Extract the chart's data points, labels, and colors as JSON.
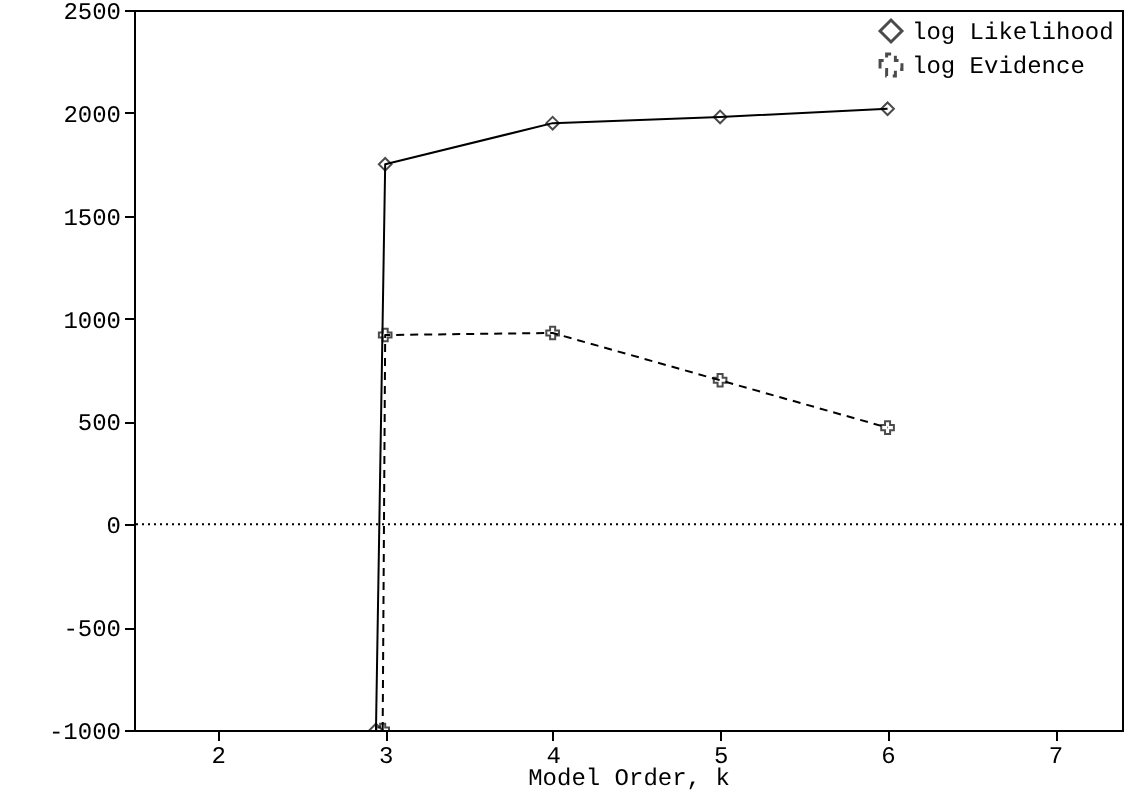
{
  "chart_data": {
    "type": "line",
    "xlabel": "Model Order, k",
    "xlim": [
      1.5,
      7.4
    ],
    "xticks": [
      2,
      3,
      4,
      5,
      6,
      7
    ],
    "ylim": [
      -1000,
      2500
    ],
    "yticks": [
      -1000,
      -500,
      0,
      500,
      1000,
      1500,
      2000,
      2500
    ],
    "legend": "top right",
    "grid": false,
    "ref_lines": [
      {
        "axis": "y",
        "value": 0,
        "line_style": "dotted",
        "color": "#000000"
      }
    ],
    "series": [
      {
        "name": "log Likelihood",
        "color": "#000000",
        "marker": "diamond",
        "line_style": "solid",
        "x": [
          2.945,
          3,
          4,
          5,
          6
        ],
        "values": [
          -1000,
          1750,
          1950,
          1980,
          2020
        ]
      },
      {
        "name": "log Evidence",
        "color": "#000000",
        "marker": "cross",
        "line_style": "dashed",
        "x": [
          2.985,
          3,
          4,
          5,
          6
        ],
        "values": [
          -1000,
          920,
          930,
          700,
          470
        ]
      }
    ]
  }
}
